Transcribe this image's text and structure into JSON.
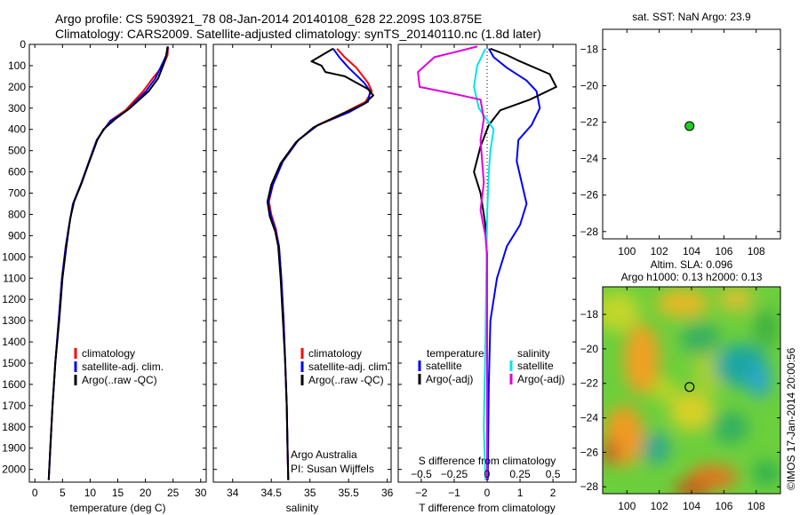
{
  "header": {
    "title_line1": "Argo profile: CS 5903921_78 08-Jan-2014 20140108_628 22.209S 103.875E",
    "title_line2": "Climatology: CARS2009. Satellite-adjusted climatology: synTS_20140110.nc (1.8d later)"
  },
  "colors": {
    "red": "#ff0000",
    "blue": "#0000ff",
    "black": "#000000",
    "cyan": "#00e5e5",
    "magenta": "#e000e0",
    "green": "#22cc22"
  },
  "chart_data": [
    {
      "id": "temperature",
      "type": "line",
      "xlabel": "temperature (deg C)",
      "xlim": [
        -1,
        31
      ],
      "ylim": [
        0,
        2060
      ],
      "y_reversed": true,
      "xticks": [
        0,
        5,
        10,
        15,
        20,
        25,
        30
      ],
      "yticks": [
        0,
        100,
        200,
        300,
        400,
        500,
        600,
        700,
        800,
        900,
        1000,
        1100,
        1200,
        1300,
        1400,
        1500,
        1600,
        1700,
        1800,
        1900,
        2000
      ],
      "legend": [
        "climatology",
        "satellite-adj. clim.",
        "Argo(..raw -QC)"
      ],
      "series": [
        {
          "name": "climatology",
          "color": "red",
          "points": [
            [
              24.1,
              10
            ],
            [
              24,
              50
            ],
            [
              23.2,
              100
            ],
            [
              21.3,
              160
            ],
            [
              19.6,
              220
            ],
            [
              16.4,
              310
            ],
            [
              13.6,
              360
            ],
            [
              12.5,
              400
            ],
            [
              11.2,
              450
            ],
            [
              10.5,
              500
            ],
            [
              9.4,
              580
            ],
            [
              8.3,
              660
            ],
            [
              6.9,
              750
            ],
            [
              6.2,
              850
            ],
            [
              5.6,
              950
            ],
            [
              4.9,
              1100
            ],
            [
              4.3,
              1300
            ],
            [
              3.7,
              1500
            ],
            [
              3.2,
              1700
            ],
            [
              2.8,
              1900
            ],
            [
              2.5,
              2050
            ]
          ]
        },
        {
          "name": "satellite-adj. clim.",
          "color": "blue",
          "points": [
            [
              24.1,
              10
            ],
            [
              23.8,
              50
            ],
            [
              22.9,
              100
            ],
            [
              21.8,
              160
            ],
            [
              20.1,
              220
            ],
            [
              16.7,
              310
            ],
            [
              13.7,
              360
            ],
            [
              12.5,
              400
            ],
            [
              11.2,
              450
            ],
            [
              10.5,
              500
            ],
            [
              9.4,
              580
            ],
            [
              8.3,
              660
            ],
            [
              6.9,
              750
            ],
            [
              6.2,
              850
            ],
            [
              5.6,
              950
            ],
            [
              4.9,
              1100
            ],
            [
              4.3,
              1300
            ],
            [
              3.7,
              1500
            ],
            [
              3.2,
              1700
            ],
            [
              2.8,
              1900
            ],
            [
              2.5,
              2050
            ]
          ]
        },
        {
          "name": "Argo(..raw -QC)",
          "color": "black",
          "points": [
            [
              24,
              10
            ],
            [
              23.9,
              30
            ],
            [
              23.7,
              60
            ],
            [
              23.2,
              100
            ],
            [
              22.3,
              160
            ],
            [
              20.6,
              220
            ],
            [
              17.2,
              300
            ],
            [
              14.6,
              350
            ],
            [
              12.4,
              400
            ],
            [
              11.3,
              450
            ],
            [
              10.6,
              500
            ],
            [
              9.6,
              570
            ],
            [
              8.5,
              650
            ],
            [
              7.1,
              740
            ],
            [
              6.4,
              820
            ],
            [
              5.7,
              950
            ],
            [
              5,
              1100
            ],
            [
              4.4,
              1300
            ],
            [
              3.7,
              1500
            ],
            [
              3.2,
              1700
            ],
            [
              2.8,
              1900
            ],
            [
              2.5,
              2050
            ]
          ]
        }
      ]
    },
    {
      "id": "salinity",
      "type": "line",
      "xlabel": "salinity",
      "xlim": [
        33.75,
        36.05
      ],
      "ylim": [
        0,
        2060
      ],
      "y_reversed": true,
      "xticks": [
        34,
        34.5,
        35,
        35.5,
        36
      ],
      "legend": [
        "climatology",
        "satellite-adj. clim.",
        "Argo(..raw -QC)"
      ],
      "annotations": [
        "Argo Australia",
        "PI: Susan Wijffels"
      ],
      "series": [
        {
          "name": "climatology",
          "color": "red",
          "points": [
            [
              35.35,
              20
            ],
            [
              35.45,
              60
            ],
            [
              35.6,
              110
            ],
            [
              35.75,
              180
            ],
            [
              35.8,
              220
            ],
            [
              35.72,
              270
            ],
            [
              35.45,
              320
            ],
            [
              35.1,
              380
            ],
            [
              34.85,
              450
            ],
            [
              34.65,
              550
            ],
            [
              34.52,
              660
            ],
            [
              34.47,
              740
            ],
            [
              34.5,
              800
            ],
            [
              34.56,
              870
            ],
            [
              34.6,
              950
            ],
            [
              34.63,
              1100
            ],
            [
              34.66,
              1300
            ],
            [
              34.68,
              1500
            ],
            [
              34.7,
              1700
            ],
            [
              34.71,
              1900
            ],
            [
              34.72,
              2050
            ]
          ]
        },
        {
          "name": "satellite-adj. clim.",
          "color": "blue",
          "points": [
            [
              35.3,
              20
            ],
            [
              35.38,
              60
            ],
            [
              35.5,
              110
            ],
            [
              35.7,
              180
            ],
            [
              35.78,
              220
            ],
            [
              35.75,
              270
            ],
            [
              35.5,
              320
            ],
            [
              35.1,
              380
            ],
            [
              34.85,
              450
            ],
            [
              34.65,
              550
            ],
            [
              34.52,
              660
            ],
            [
              34.46,
              740
            ],
            [
              34.49,
              800
            ],
            [
              34.55,
              870
            ],
            [
              34.6,
              950
            ],
            [
              34.63,
              1100
            ],
            [
              34.66,
              1300
            ],
            [
              34.68,
              1500
            ],
            [
              34.7,
              1700
            ],
            [
              34.71,
              1900
            ],
            [
              34.72,
              2050
            ]
          ]
        },
        {
          "name": "Argo(..raw -QC)",
          "color": "black",
          "points": [
            [
              35.3,
              20
            ],
            [
              35.02,
              80
            ],
            [
              35.15,
              100
            ],
            [
              35.2,
              130
            ],
            [
              35.45,
              150
            ],
            [
              35.6,
              180
            ],
            [
              35.75,
              210
            ],
            [
              35.82,
              240
            ],
            [
              35.7,
              280
            ],
            [
              35.4,
              330
            ],
            [
              35.05,
              390
            ],
            [
              34.82,
              460
            ],
            [
              34.62,
              560
            ],
            [
              34.5,
              660
            ],
            [
              34.45,
              740
            ],
            [
              34.48,
              810
            ],
            [
              34.55,
              880
            ],
            [
              34.59,
              950
            ],
            [
              34.62,
              1100
            ],
            [
              34.65,
              1300
            ],
            [
              34.68,
              1500
            ],
            [
              34.7,
              1700
            ],
            [
              34.71,
              1900
            ],
            [
              34.72,
              2050
            ]
          ]
        }
      ]
    },
    {
      "id": "differences",
      "type": "line",
      "xlabel": "T difference from climatology",
      "xlabel_top": "S difference from climatology",
      "xlim": [
        -2.7,
        2.7
      ],
      "ylim": [
        0,
        2060
      ],
      "y_reversed": true,
      "xticks": [
        -2,
        -1,
        0,
        1,
        2
      ],
      "xticks_s_labels": [
        "-0.5",
        "-0.25",
        "0",
        "0.25",
        "0.5"
      ],
      "legend": {
        "temperature": [
          "satellite",
          "Argo(-adj)"
        ],
        "salinity": [
          "satellite",
          "Argo(-adj)"
        ],
        "temperature_title": "temperature",
        "salinity_title": "salinity"
      },
      "series": [
        {
          "name": "temperature satellite",
          "color": "blue",
          "points": [
            [
              0.05,
              20
            ],
            [
              0.2,
              60
            ],
            [
              0.6,
              110
            ],
            [
              1.2,
              170
            ],
            [
              1.5,
              220
            ],
            [
              1.6,
              300
            ],
            [
              1.35,
              380
            ],
            [
              0.95,
              450
            ],
            [
              0.9,
              550
            ],
            [
              1.05,
              650
            ],
            [
              1.2,
              750
            ],
            [
              1,
              850
            ],
            [
              0.6,
              950
            ],
            [
              0.3,
              1100
            ],
            [
              0.1,
              1300
            ],
            [
              0.05,
              1600
            ],
            [
              0.02,
              2050
            ]
          ]
        },
        {
          "name": "temperature Argo(-adj)",
          "color": "black",
          "points": [
            [
              0.1,
              20
            ],
            [
              0.6,
              50
            ],
            [
              1,
              80
            ],
            [
              1.9,
              140
            ],
            [
              2.1,
              200
            ],
            [
              1.3,
              260
            ],
            [
              0.4,
              310
            ],
            [
              0.05,
              380
            ],
            [
              -0.2,
              480
            ],
            [
              -0.4,
              600
            ],
            [
              -0.2,
              700
            ],
            [
              -0.05,
              850
            ],
            [
              0,
              1000
            ],
            [
              0,
              2050
            ]
          ]
        },
        {
          "name": "salinity satellite",
          "color": "cyan",
          "points": [
            [
              -0.05,
              20
            ],
            [
              -0.3,
              100
            ],
            [
              -0.4,
              200
            ],
            [
              -0.25,
              300
            ],
            [
              0.2,
              400
            ],
            [
              0.1,
              500
            ],
            [
              0.05,
              600
            ],
            [
              0,
              800
            ],
            [
              -0.05,
              1400
            ],
            [
              -0.1,
              1800
            ],
            [
              -0.05,
              2050
            ]
          ]
        },
        {
          "name": "salinity Argo(-adj)",
          "color": "magenta",
          "points": [
            [
              -0.3,
              10
            ],
            [
              -1.6,
              60
            ],
            [
              -2.1,
              130
            ],
            [
              -2.05,
              200
            ],
            [
              -1.1,
              230
            ],
            [
              -0.2,
              260
            ],
            [
              -0.1,
              350
            ],
            [
              -0.2,
              450
            ],
            [
              -0.15,
              550
            ],
            [
              -0.1,
              650
            ],
            [
              -0.2,
              780
            ],
            [
              -0.05,
              900
            ],
            [
              0,
              1000
            ],
            [
              0,
              2050
            ]
          ]
        }
      ]
    },
    {
      "id": "sst-map",
      "type": "scatter",
      "title": "sat. SST: NaN Argo: 23.9",
      "xlim": [
        98.5,
        109.5
      ],
      "ylim": [
        -28.4,
        -16.9
      ],
      "xticks": [
        100,
        102,
        104,
        106,
        108
      ],
      "yticks": [
        -18,
        -20,
        -22,
        -24,
        -26,
        -28
      ],
      "point": {
        "x": 103.875,
        "y": -22.209,
        "color": "green"
      }
    },
    {
      "id": "sla-map",
      "type": "heatmap",
      "title_line1": "Altim. SLA: 0.096",
      "title_line2": "Argo h1000: 0.13 h2000: 0.13",
      "xlim": [
        98.5,
        109.5
      ],
      "ylim": [
        -28.4,
        -16.4
      ],
      "xticks": [
        100,
        102,
        104,
        106,
        108
      ],
      "yticks": [
        -18,
        -20,
        -22,
        -24,
        -26,
        -28
      ],
      "point": {
        "x": 103.875,
        "y": -22.209
      },
      "side_label": "©IMOS 17-Jan-2014 20:00:56"
    }
  ]
}
